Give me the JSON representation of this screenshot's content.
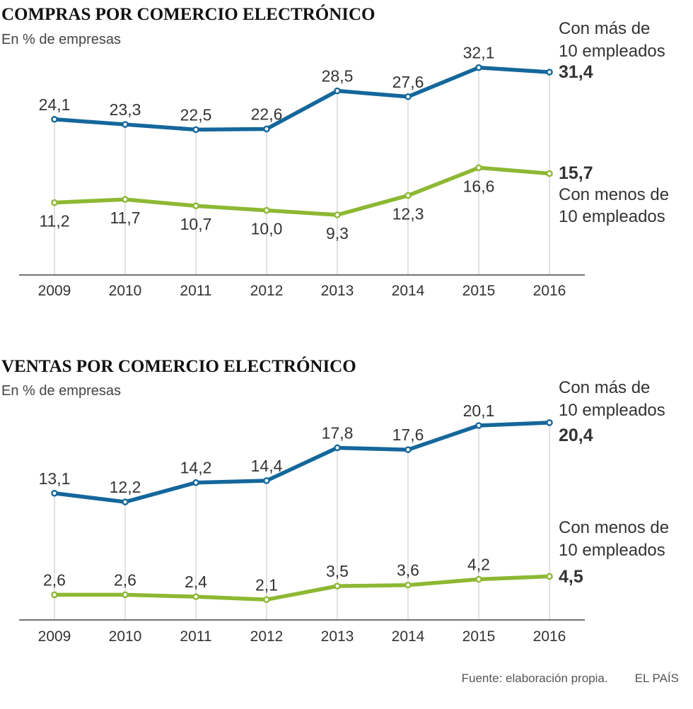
{
  "colors": {
    "series_large": "#14679b",
    "series_small": "#8db833"
  },
  "chart_data": [
    {
      "type": "line",
      "title": "COMPRAS POR COMERCIO ELECTRÓNICO",
      "subtitle": "En % de empresas",
      "categories": [
        "2009",
        "2010",
        "2011",
        "2012",
        "2013",
        "2014",
        "2015",
        "2016"
      ],
      "ylim": [
        0,
        36
      ],
      "series": [
        {
          "name": "Con más de 10 empleados",
          "name_lines": [
            "Con más de",
            "10 empleados"
          ],
          "values": [
            24.1,
            23.3,
            22.5,
            22.6,
            28.5,
            27.6,
            32.1,
            31.4
          ],
          "labels": [
            "24,1",
            "23,3",
            "22,5",
            "22,6",
            "28,5",
            "27,6",
            "32,1",
            "31,4"
          ]
        },
        {
          "name": "Con menos de 10 empleados",
          "name_lines": [
            "Con menos de",
            "10 empleados"
          ],
          "values": [
            11.2,
            11.7,
            10.7,
            10.0,
            9.3,
            12.3,
            16.6,
            15.7
          ],
          "labels": [
            "11,2",
            "11,7",
            "10,7",
            "10,0",
            "9,3",
            "12,3",
            "16,6",
            "15,7"
          ]
        }
      ]
    },
    {
      "type": "line",
      "title": "VENTAS POR COMERCIO ELECTRÓNICO",
      "subtitle": "En % de empresas",
      "categories": [
        "2009",
        "2010",
        "2011",
        "2012",
        "2013",
        "2014",
        "2015",
        "2016"
      ],
      "ylim": [
        0,
        22
      ],
      "series": [
        {
          "name": "Con más de 10 empleados",
          "name_lines": [
            "Con más de",
            "10 empleados"
          ],
          "values": [
            13.1,
            12.2,
            14.2,
            14.4,
            17.8,
            17.6,
            20.1,
            20.4
          ],
          "labels": [
            "13,1",
            "12,2",
            "14,2",
            "14,4",
            "17,8",
            "17,6",
            "20,1",
            "20,4"
          ]
        },
        {
          "name": "Con menos de 10 empleados",
          "name_lines": [
            "Con menos de",
            "10 empleados"
          ],
          "values": [
            2.6,
            2.6,
            2.4,
            2.1,
            3.5,
            3.6,
            4.2,
            4.5
          ],
          "labels": [
            "2,6",
            "2,6",
            "2,4",
            "2,1",
            "3,5",
            "3,6",
            "4,2",
            "4,5"
          ]
        }
      ]
    }
  ],
  "footer": {
    "source": "Fuente: elaboración propia.",
    "brand": "EL PAÍS"
  }
}
